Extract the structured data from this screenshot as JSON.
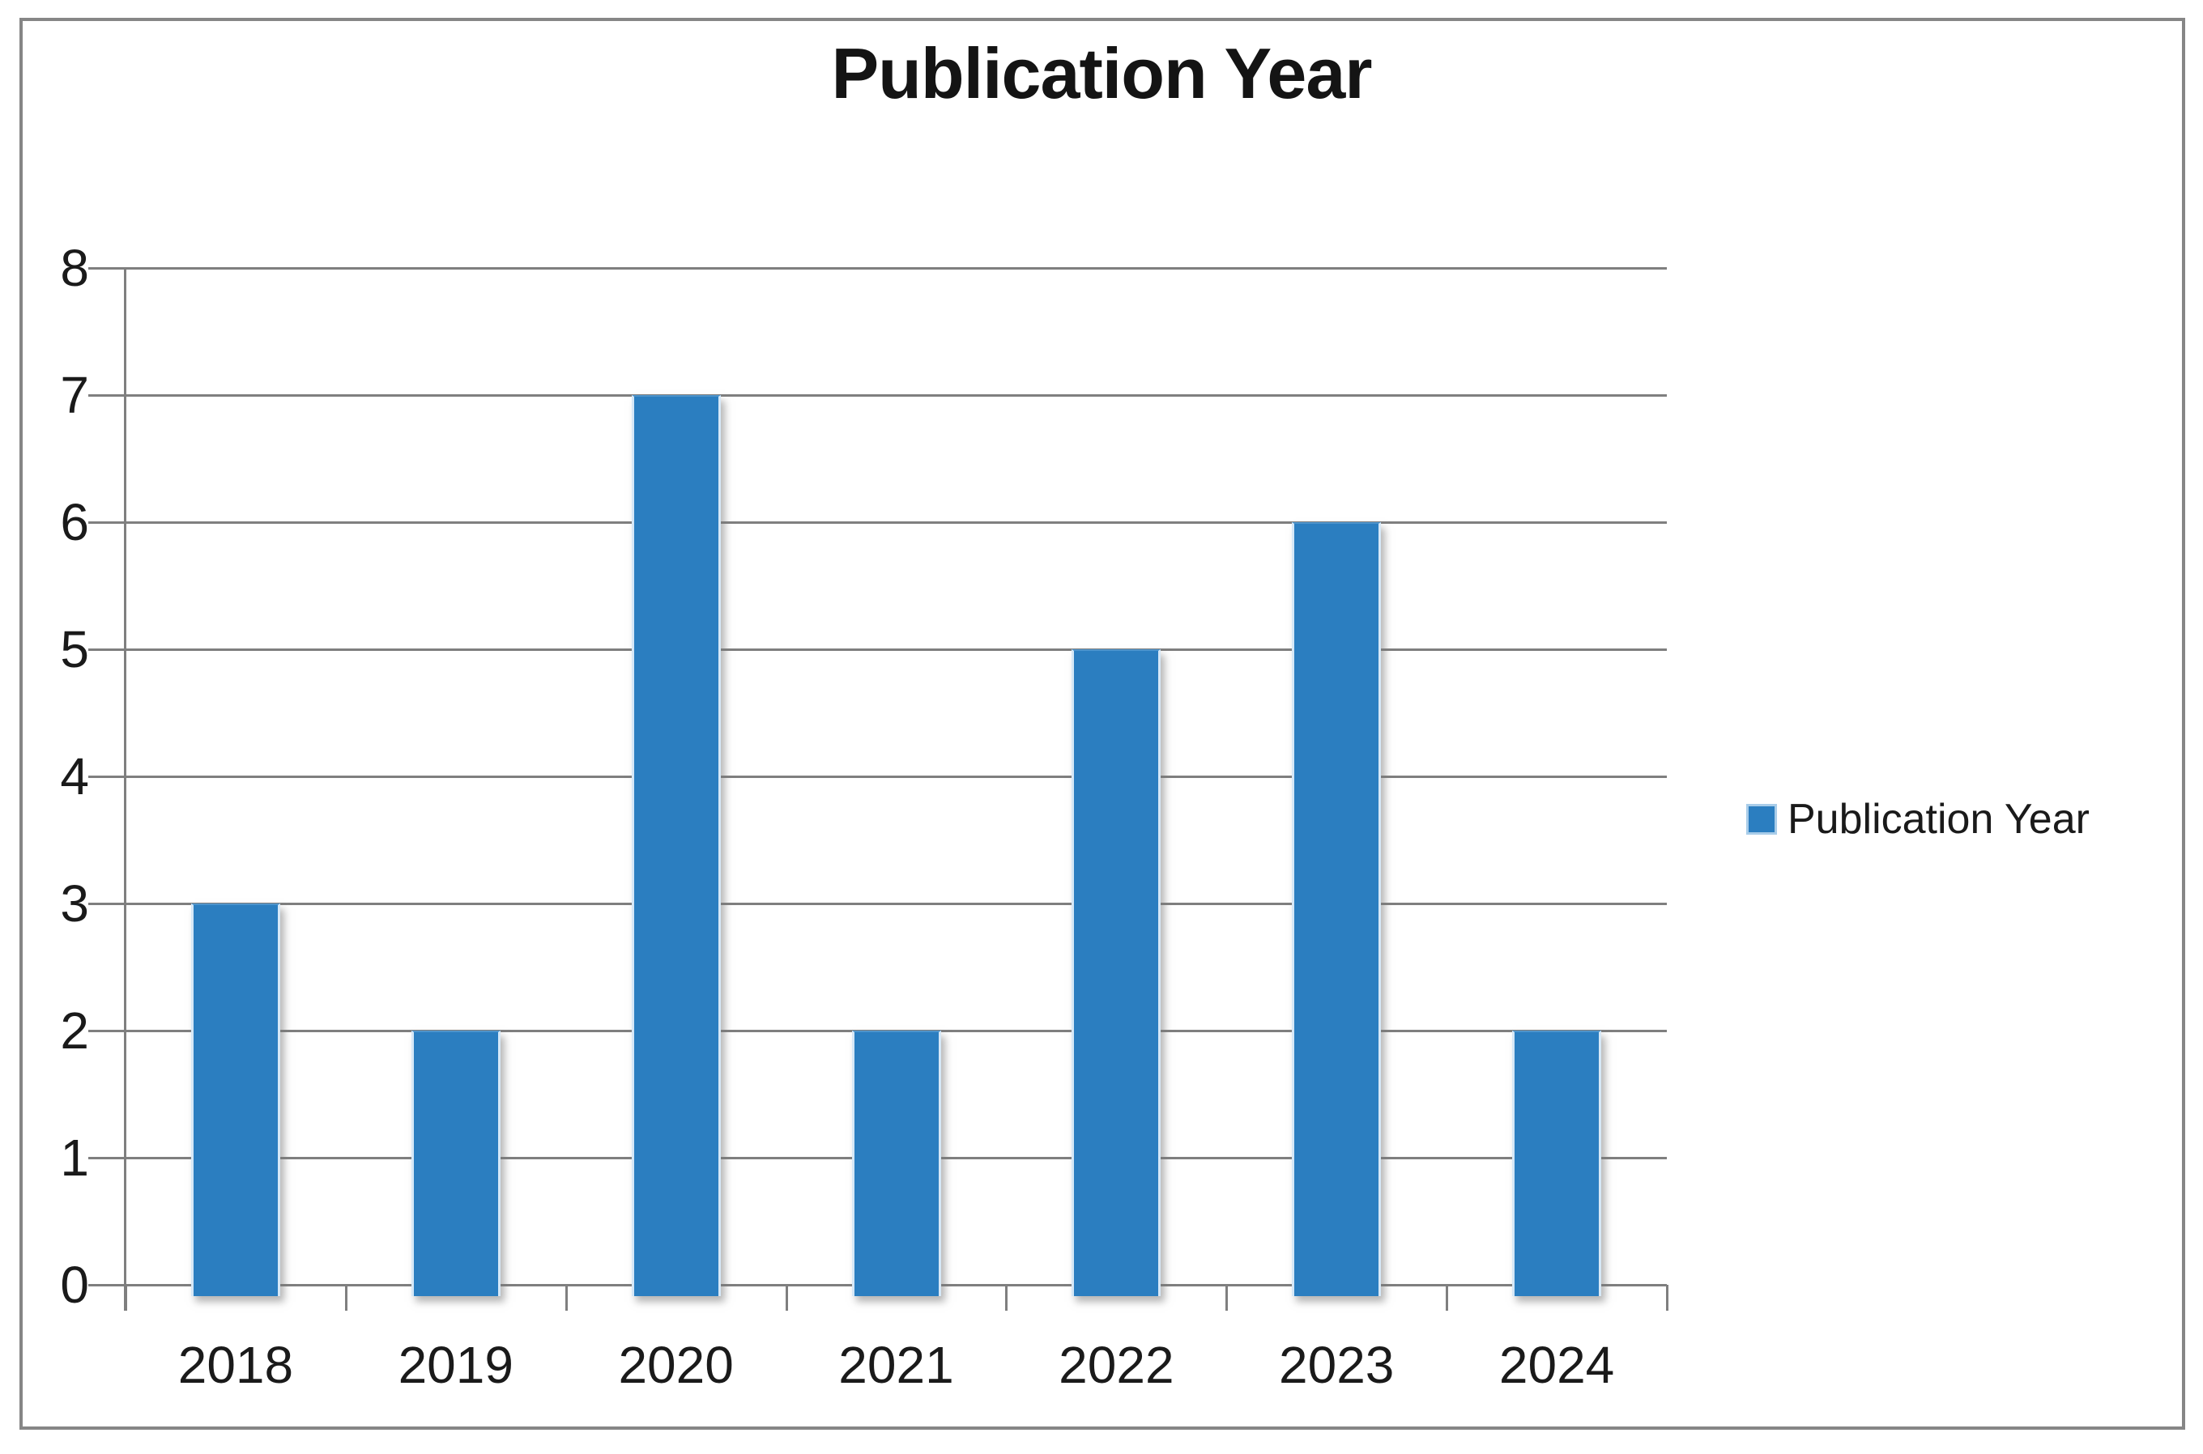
{
  "chart_data": {
    "type": "bar",
    "title": "Publication Year",
    "categories": [
      "2018",
      "2019",
      "2020",
      "2021",
      "2022",
      "2023",
      "2024"
    ],
    "series": [
      {
        "name": "Publication Year",
        "values": [
          3,
          2,
          7,
          2,
          5,
          6,
          2
        ]
      }
    ],
    "xlabel": "",
    "ylabel": "",
    "ylim": [
      0,
      8
    ],
    "yticks": [
      0,
      1,
      2,
      3,
      4,
      5,
      6,
      7,
      8
    ],
    "grid": true,
    "legend_position": "right",
    "colors": {
      "bar": "#2B7EC0",
      "bar_edge": "#D6E8F7",
      "gridline": "#7F7F7F",
      "axis": "#7F7F7F",
      "text": "#1A1A1A",
      "figure_border": "#868686",
      "background": "#FFFFFF"
    }
  },
  "legend": {
    "label": "Publication Year"
  }
}
